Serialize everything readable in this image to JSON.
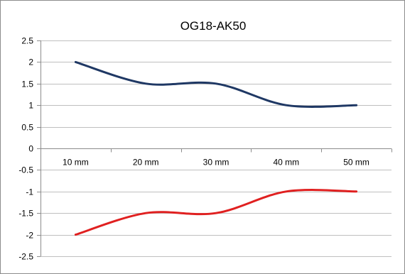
{
  "chart_data": {
    "type": "line",
    "title": "OG18-AK50",
    "xlabel": "",
    "ylabel": "",
    "categories": [
      "10 mm",
      "20 mm",
      "30 mm",
      "40 mm",
      "50 mm"
    ],
    "ylim": [
      -2.5,
      2.5
    ],
    "yticks": [
      2.5,
      2,
      1.5,
      1,
      0.5,
      0,
      -0.5,
      -1,
      -1.5,
      -2,
      -2.5
    ],
    "ytick_labels": [
      "2.5",
      "2",
      "1.5",
      "1",
      "0.5",
      "0",
      "-0.5",
      "-1",
      "-1.5",
      "-2",
      "-2.5"
    ],
    "grid": true,
    "legend": "none",
    "smooth": true,
    "series": [
      {
        "values": [
          2,
          1.5,
          1.5,
          1,
          1
        ],
        "color": "#1f3864"
      },
      {
        "values": [
          -2,
          -1.5,
          -1.5,
          -1,
          -1
        ],
        "color": "#e02020"
      }
    ]
  }
}
